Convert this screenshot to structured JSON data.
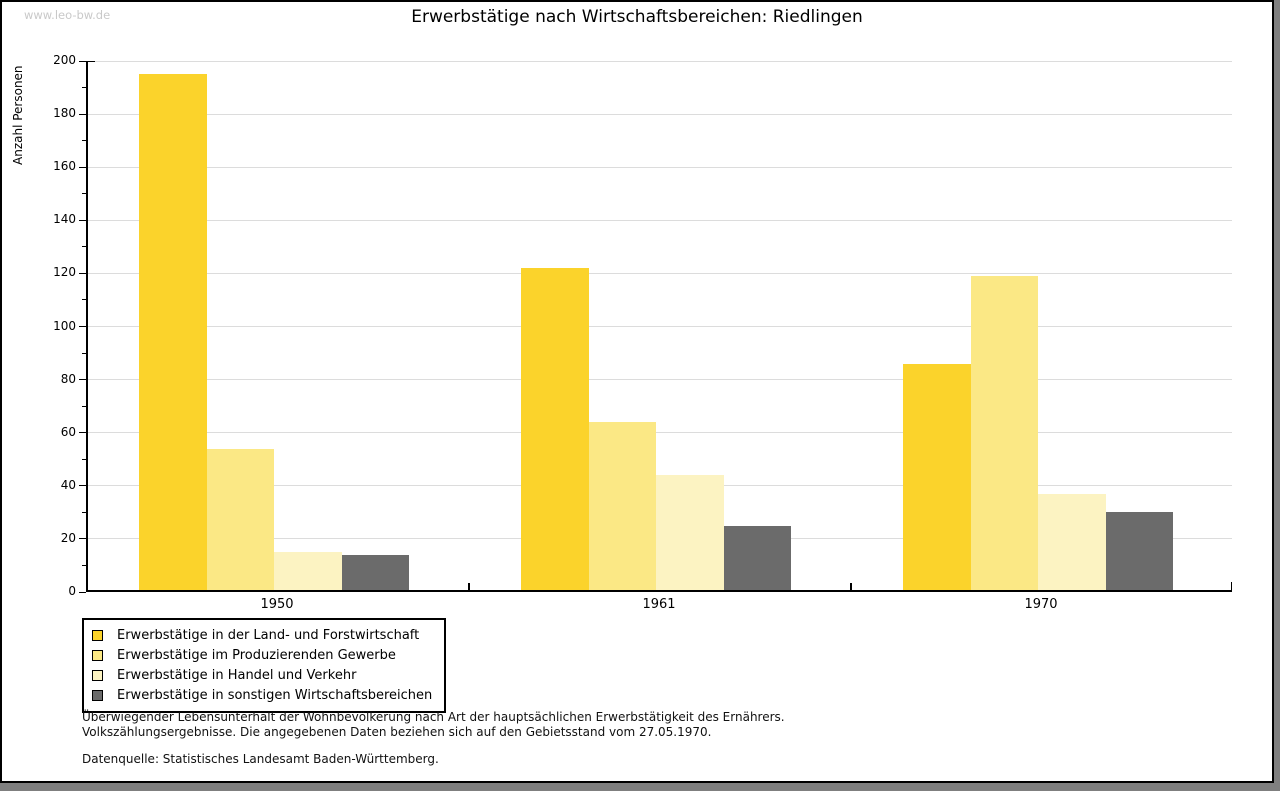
{
  "watermark": "www.leo-bw.de",
  "title": "Erwerbstätige nach Wirtschaftsbereichen: Riedlingen",
  "chart_data": {
    "type": "bar",
    "title": "Erwerbstätige nach Wirtschaftsbereichen: Riedlingen",
    "xlabel": "",
    "ylabel": "Anzahl Personen",
    "ylim": [
      0,
      200
    ],
    "ytick_step": 20,
    "minor_tick_step": 10,
    "grid": true,
    "legend_position": "bottom-left",
    "categories": [
      "1950",
      "1961",
      "1970"
    ],
    "series": [
      {
        "name": "Erwerbstätige in der Land- und Forstwirtschaft",
        "color": "#FBD32B",
        "values": [
          195,
          122,
          86
        ]
      },
      {
        "name": "Erwerbstätige im Produzierenden Gewerbe",
        "color": "#FBE885",
        "values": [
          54,
          64,
          119
        ]
      },
      {
        "name": "Erwerbstätige in Handel und Verkehr",
        "color": "#FCF3C2",
        "values": [
          15,
          44,
          37
        ]
      },
      {
        "name": "Erwerbstätige in sonstigen Wirtschaftsbereichen",
        "color": "#6B6B6B",
        "values": [
          14,
          25,
          30
        ]
      }
    ]
  },
  "footer": {
    "note_line1": "Überwiegender Lebensunterhalt der Wohnbevölkerung nach Art der hauptsächlichen Erwerbstätigkeit des Ernährers.",
    "note_line2": "Volkszählungsergebnisse. Die angegebenen Daten beziehen sich auf den Gebietsstand vom 27.05.1970.",
    "source": "Datenquelle: Statistisches Landesamt Baden-Württemberg."
  },
  "colors": {
    "grid": "#DCDCDC",
    "axis": "#000000",
    "watermark": "#C9C9C9",
    "frame_shadow": "#7F7F7F",
    "background": "#FFFFFF"
  }
}
